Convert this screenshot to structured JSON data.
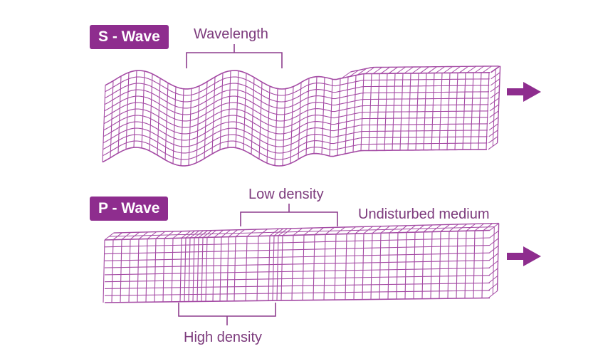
{
  "s_wave": {
    "badge": "S - Wave",
    "wavelength_label": "Wavelength"
  },
  "p_wave": {
    "badge": "P - Wave",
    "low_density_label": "Low density",
    "undisturbed_label": "Undisturbed medium",
    "high_density_label": "High density"
  },
  "colors": {
    "badge_bg": "#8e2d8e",
    "grid_line": "#a44aa4",
    "label_text": "#7c3a7c",
    "arrow": "#8e2d8e"
  },
  "icons": [
    "right-arrow-icon"
  ]
}
